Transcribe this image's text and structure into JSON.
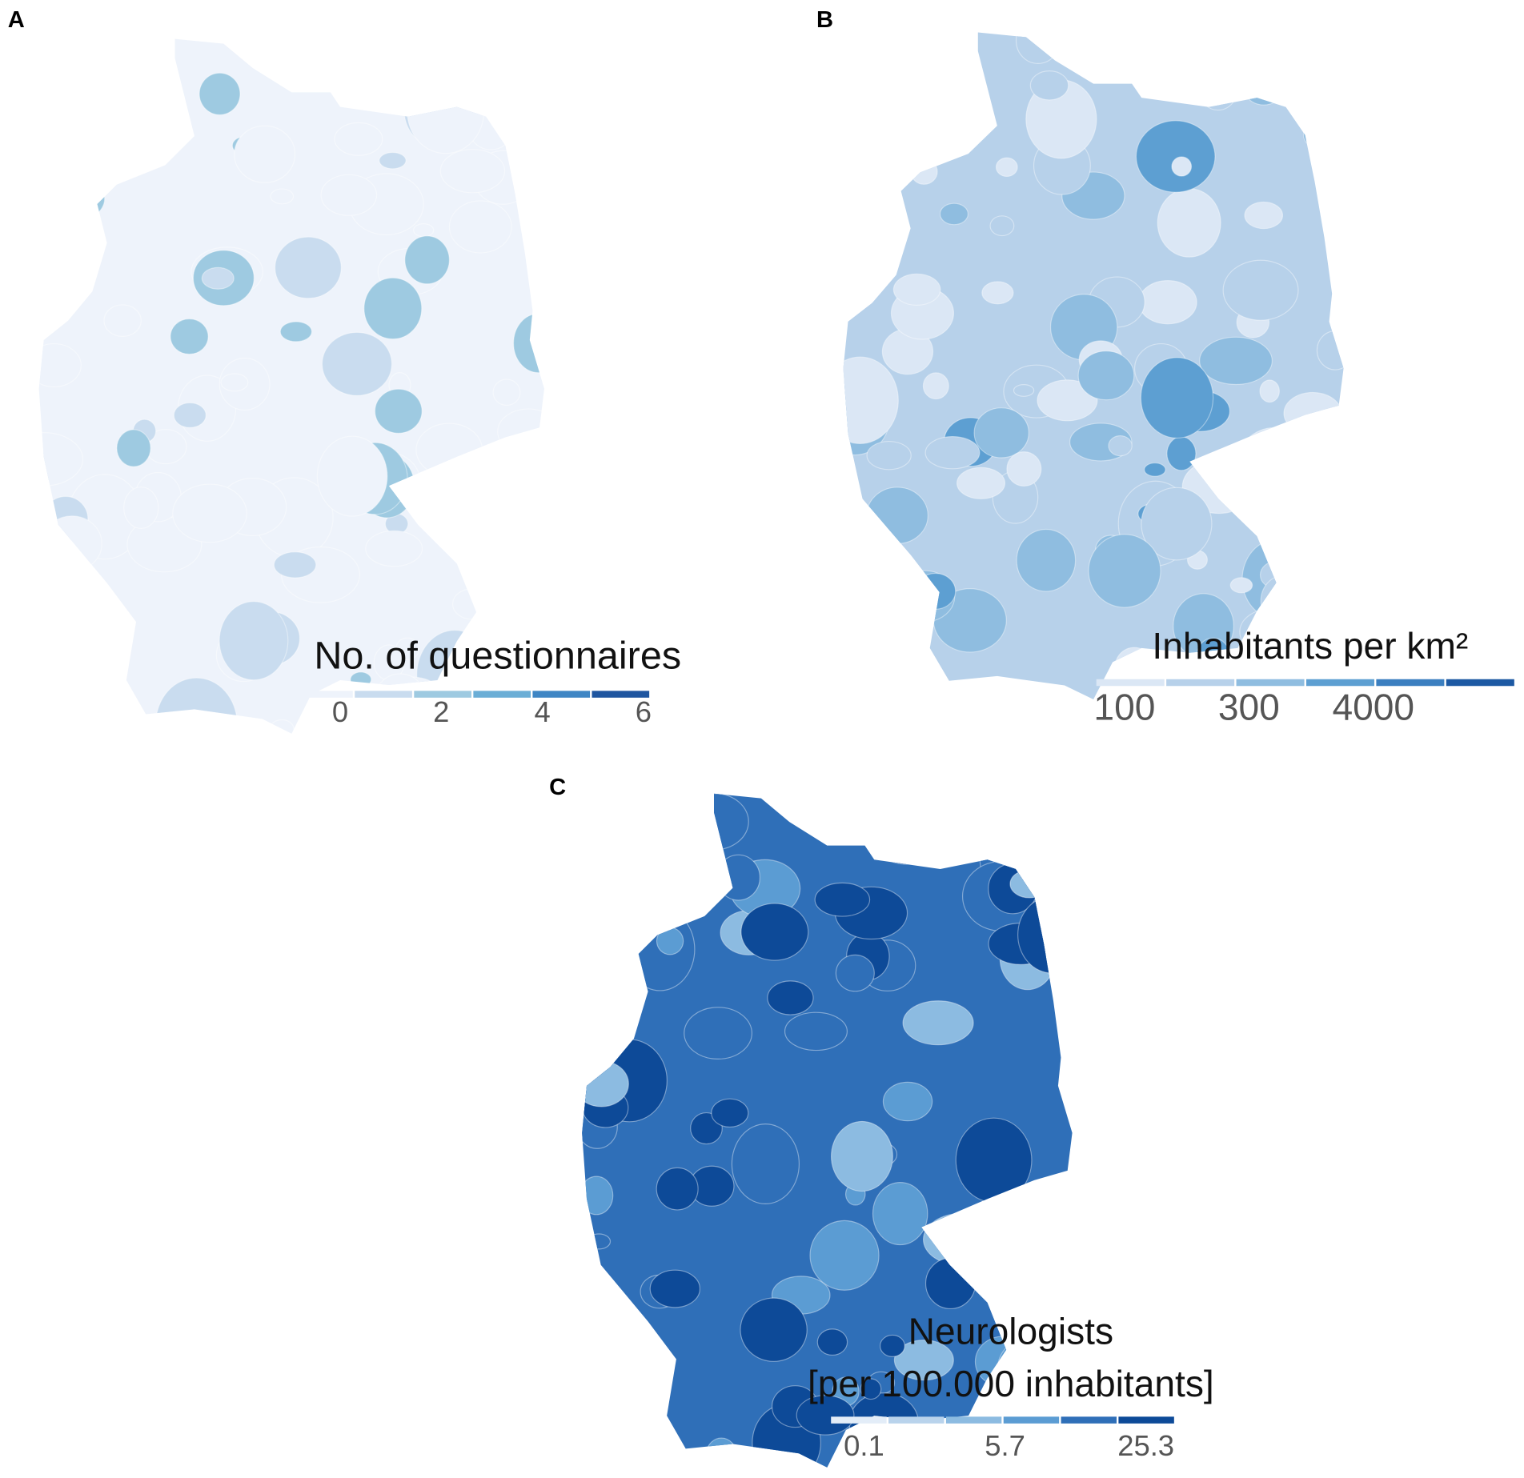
{
  "panels": [
    {
      "label": "A",
      "legend": {
        "title": [
          "No. of questionnaires"
        ],
        "colors": [
          "#eef3fb",
          "#c9dcef",
          "#9ecae1",
          "#6baed6",
          "#3f86c4",
          "#1f56a0"
        ],
        "ticks": [
          0,
          2,
          4,
          6
        ]
      }
    },
    {
      "label": "B",
      "legend": {
        "title": [
          "Inhabitants per km²"
        ],
        "colors": [
          "#dbe7f5",
          "#b7d1ea",
          "#8fbde0",
          "#5d9fd2",
          "#3b7fc0",
          "#1d59a3"
        ],
        "ticks": [
          100,
          300,
          4000
        ]
      }
    },
    {
      "label": "C",
      "legend": {
        "title": [
          "Neurologists",
          "[per 100.000 inhabitants]"
        ],
        "colors": [
          "#e3edf8",
          "#b9d3ec",
          "#8cbbe1",
          "#5b9cd3",
          "#2f6fb8",
          "#0d4a98"
        ],
        "ticks": [
          0.1,
          5.7,
          25.3
        ]
      }
    }
  ]
}
